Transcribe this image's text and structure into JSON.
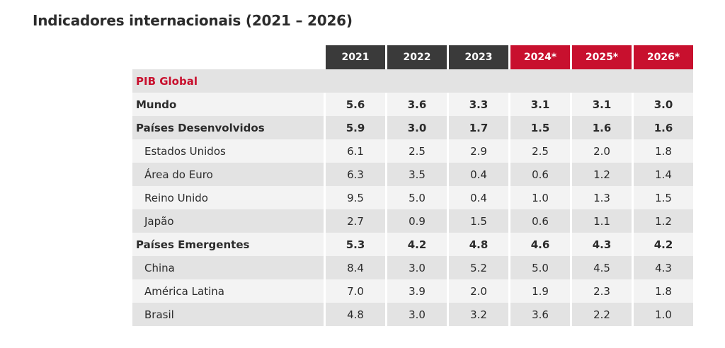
{
  "page": {
    "title": "Indicadores internacionais (2021 – 2026)"
  },
  "table": {
    "years": [
      {
        "label": "2021",
        "projected": false
      },
      {
        "label": "2022",
        "projected": false
      },
      {
        "label": "2023",
        "projected": false
      },
      {
        "label": "2024*",
        "projected": true
      },
      {
        "label": "2025*",
        "projected": true
      },
      {
        "label": "2026*",
        "projected": true
      }
    ],
    "section": "PIB Global",
    "rows": [
      {
        "label": "Mundo",
        "bold": true,
        "values": [
          "5.6",
          "3.6",
          "3.3",
          "3.1",
          "3.1",
          "3.0"
        ]
      },
      {
        "label": "Países Desenvolvidos",
        "bold": true,
        "values": [
          "5.9",
          "3.0",
          "1.7",
          "1.5",
          "1.6",
          "1.6"
        ]
      },
      {
        "label": "Estados Unidos",
        "bold": false,
        "values": [
          "6.1",
          "2.5",
          "2.9",
          "2.5",
          "2.0",
          "1.8"
        ]
      },
      {
        "label": "Área do Euro",
        "bold": false,
        "values": [
          "6.3",
          "3.5",
          "0.4",
          "0.6",
          "1.2",
          "1.4"
        ]
      },
      {
        "label": "Reino Unido",
        "bold": false,
        "values": [
          "9.5",
          "5.0",
          "0.4",
          "1.0",
          "1.3",
          "1.5"
        ]
      },
      {
        "label": "Japão",
        "bold": false,
        "values": [
          "2.7",
          "0.9",
          "1.5",
          "0.6",
          "1.1",
          "1.2"
        ]
      },
      {
        "label": "Países Emergentes",
        "bold": true,
        "values": [
          "5.3",
          "4.2",
          "4.8",
          "4.6",
          "4.3",
          "4.2"
        ]
      },
      {
        "label": "China",
        "bold": false,
        "values": [
          "8.4",
          "3.0",
          "5.2",
          "5.0",
          "4.5",
          "4.3"
        ]
      },
      {
        "label": "América Latina",
        "bold": false,
        "values": [
          "7.0",
          "3.9",
          "2.0",
          "1.9",
          "2.3",
          "1.8"
        ]
      },
      {
        "label": "Brasil",
        "bold": false,
        "values": [
          "4.8",
          "3.0",
          "3.2",
          "3.6",
          "2.2",
          "1.0"
        ]
      }
    ]
  },
  "colors": {
    "historical_header": "#3a3a3a",
    "projected_header": "#c8102e",
    "section_text": "#c8102e",
    "row_dark": "#e3e3e3",
    "row_light": "#f3f3f3"
  }
}
